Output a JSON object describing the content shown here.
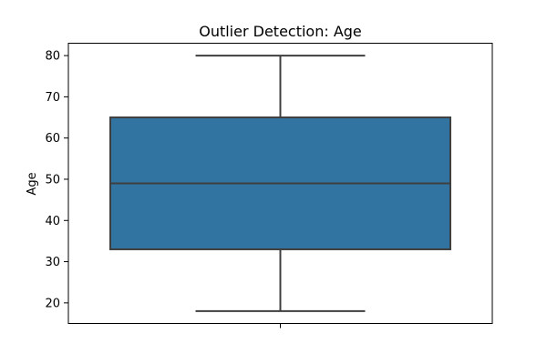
{
  "chart_data": {
    "type": "box",
    "title": "Outlier Detection: Age",
    "xlabel": "",
    "ylabel": "Age",
    "ylim": [
      15,
      83
    ],
    "yticks": [
      20,
      30,
      40,
      50,
      60,
      70,
      80
    ],
    "grid": false,
    "box": {
      "whisker_low": 18,
      "q1": 33,
      "median": 49,
      "q3": 65,
      "whisker_high": 80
    },
    "colors": {
      "box_fill": "#3274a1",
      "line": "#3f3f3f",
      "axis": "#000000"
    }
  }
}
